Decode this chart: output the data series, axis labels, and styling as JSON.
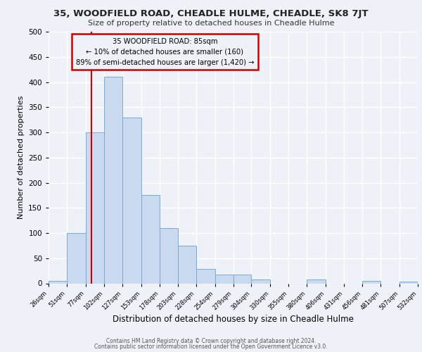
{
  "title": "35, WOODFIELD ROAD, CHEADLE HULME, CHEADLE, SK8 7JT",
  "subtitle": "Size of property relative to detached houses in Cheadle Hulme",
  "xlabel": "Distribution of detached houses by size in Cheadle Hulme",
  "ylabel": "Number of detached properties",
  "bin_edges": [
    26,
    51,
    77,
    102,
    127,
    153,
    178,
    203,
    228,
    254,
    279,
    304,
    330,
    355,
    380,
    406,
    431,
    456,
    481,
    507,
    532
  ],
  "bar_heights": [
    5,
    100,
    300,
    410,
    330,
    175,
    110,
    75,
    28,
    18,
    18,
    8,
    0,
    0,
    8,
    0,
    0,
    5,
    0,
    3
  ],
  "bar_color": "#c9d9f0",
  "bar_edge_color": "#7aaad0",
  "property_line_x": 85,
  "property_line_color": "#cc0000",
  "annotation_title": "35 WOODFIELD ROAD: 85sqm",
  "annotation_line1": "← 10% of detached houses are smaller (160)",
  "annotation_line2": "89% of semi-detached houses are larger (1,420) →",
  "annotation_box_color": "#cc0000",
  "ylim": [
    0,
    500
  ],
  "yticks": [
    0,
    50,
    100,
    150,
    200,
    250,
    300,
    350,
    400,
    450,
    500
  ],
  "background_color": "#eef2f8",
  "grid_color": "#ffffff",
  "footer_line1": "Contains HM Land Registry data © Crown copyright and database right 2024.",
  "footer_line2": "Contains public sector information licensed under the Open Government Licence v3.0."
}
